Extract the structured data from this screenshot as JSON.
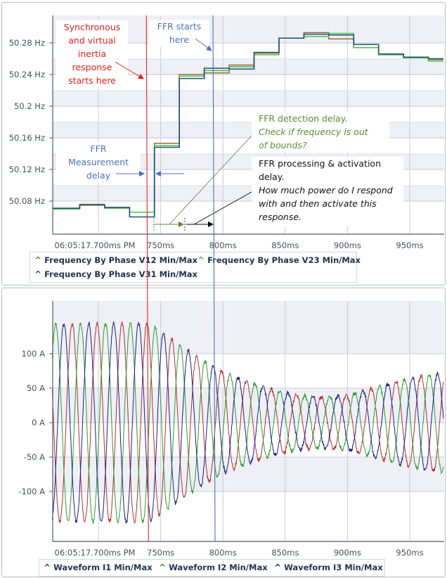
{
  "chart_data": [
    {
      "type": "line",
      "subtype": "step",
      "xlabel": "",
      "ylabel": "",
      "x_unit": "ms",
      "xlim": [
        663,
        977
      ],
      "ylim": [
        50.045,
        50.315
      ],
      "x_ticks": [
        {
          "value": 700,
          "label": "06:05:17.700ms PM"
        },
        {
          "value": 750,
          "label": "750ms"
        },
        {
          "value": 800,
          "label": "800ms"
        },
        {
          "value": 850,
          "label": "850ms"
        },
        {
          "value": 900,
          "label": "900ms"
        },
        {
          "value": 950,
          "label": "950ms"
        }
      ],
      "y_ticks": [
        {
          "value": 50.08,
          "label": "50.08 Hz"
        },
        {
          "value": 50.12,
          "label": "50.12 Hz"
        },
        {
          "value": 50.16,
          "label": "50.16 Hz"
        },
        {
          "value": 50.2,
          "label": "50.2 Hz"
        },
        {
          "value": 50.24,
          "label": "50.24 Hz"
        },
        {
          "value": 50.28,
          "label": "50.28 Hz"
        }
      ],
      "grid": true,
      "legend_position": "bottom",
      "step_times": [
        663,
        685,
        705,
        725,
        745,
        765,
        785,
        805,
        825,
        845,
        865,
        885,
        905,
        925,
        945,
        965,
        977
      ],
      "series": [
        {
          "name": "Frequency By Phase V12 Min/Max",
          "color": "#9a6a3c",
          "values": [
            50.071,
            50.076,
            50.072,
            50.066,
            50.153,
            50.24,
            50.242,
            50.252,
            50.267,
            50.286,
            50.293,
            50.285,
            50.274,
            50.265,
            50.262,
            50.259
          ]
        },
        {
          "name": "Frequency By Phase V23 Min/Max",
          "color": "#4cc04c",
          "values": [
            50.07,
            50.075,
            50.071,
            50.066,
            50.15,
            50.238,
            50.245,
            50.25,
            50.265,
            50.286,
            50.288,
            50.292,
            50.274,
            50.265,
            50.261,
            50.257
          ]
        },
        {
          "name": "Frequency By Phase V31 Min/Max",
          "color": "#1f4e79",
          "values": [
            50.071,
            50.075,
            50.072,
            50.06,
            50.148,
            50.235,
            50.248,
            50.247,
            50.268,
            50.286,
            50.291,
            50.29,
            50.278,
            50.266,
            50.262,
            50.26
          ]
        }
      ],
      "markers": [
        {
          "label": "Synchronous and virtual inertia response starts here",
          "x": 738.5,
          "color": "#e8262a"
        },
        {
          "label": "FFR starts here",
          "x": 792,
          "color": "#4a72b8"
        }
      ]
    },
    {
      "type": "line",
      "xlabel": "",
      "ylabel": "",
      "x_unit": "ms",
      "xlim": [
        663,
        977
      ],
      "ylim": [
        -175,
        175
      ],
      "x_ticks": [
        {
          "value": 700,
          "label": "06:05:17.700ms PM"
        },
        {
          "value": 750,
          "label": "750ms"
        },
        {
          "value": 800,
          "label": "800ms"
        },
        {
          "value": 850,
          "label": "850ms"
        },
        {
          "value": 900,
          "label": "900ms"
        },
        {
          "value": 950,
          "label": "950ms"
        }
      ],
      "y_ticks": [
        {
          "value": 100,
          "label": "100 A"
        },
        {
          "value": 50,
          "label": "50 A"
        },
        {
          "value": 0,
          "label": "0 A"
        },
        {
          "value": -50,
          "label": "-50 A"
        },
        {
          "value": -100,
          "label": "-100 A"
        }
      ],
      "grid": true,
      "legend_position": "bottom",
      "frequency_hz": 50,
      "amplitude_envelope": [
        [
          663,
          143
        ],
        [
          740,
          145
        ],
        [
          760,
          120
        ],
        [
          780,
          95
        ],
        [
          800,
          74
        ],
        [
          820,
          60
        ],
        [
          840,
          48
        ],
        [
          860,
          40
        ],
        [
          880,
          37
        ],
        [
          900,
          40
        ],
        [
          920,
          50
        ],
        [
          940,
          60
        ],
        [
          960,
          68
        ],
        [
          977,
          72
        ]
      ],
      "series": [
        {
          "name": "Waveform I1 Min/Max",
          "color": "#b03030",
          "peak_time_ms": 719
        },
        {
          "name": "Waveform I2 Min/Max",
          "color": "#2e9a2e",
          "peak_time_ms": 725.7
        },
        {
          "name": "Waveform I3 Min/Max",
          "color": "#1c1c8a",
          "peak_time_ms": 732.3
        }
      ]
    }
  ],
  "annotations": {
    "inertia": [
      "Synchronous",
      "and virtual",
      "inertia",
      "response",
      "starts here"
    ],
    "ffr_start": [
      "FFR starts",
      "here"
    ],
    "measurement": [
      "FFR",
      "Measurement",
      "delay"
    ],
    "detection": {
      "title": "FFR detection delay.",
      "note": [
        "Check if frequency is out",
        "of bounds?"
      ]
    },
    "processing": {
      "title": [
        "FFR processing & activation",
        "delay."
      ],
      "note": [
        "How much power do I respond",
        "with and then activate this",
        "response."
      ]
    }
  },
  "colors": {
    "band": "#eef0f5",
    "grid": "#c8ccd6",
    "axis": "#4d5a6e"
  }
}
